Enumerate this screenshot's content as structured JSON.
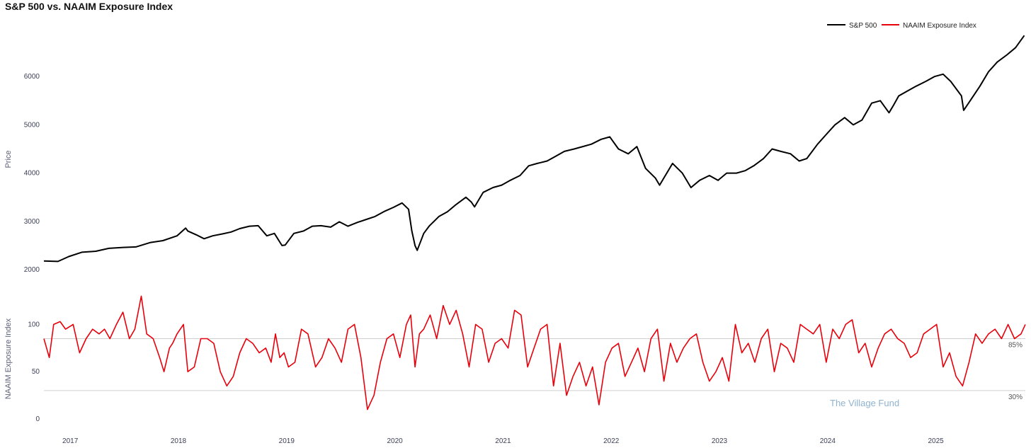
{
  "title": "S&P 500 vs. NAAIM Exposure Index",
  "watermark": "The Village Fund",
  "colors": {
    "sp500": "#000000",
    "naaim": "#e8000b",
    "refline": "#cfcfcf"
  },
  "chart_data": [
    {
      "type": "line",
      "name": "price-panel",
      "ylabel": "Price",
      "ylim": [
        1750,
        7000
      ],
      "yticks": [
        2000,
        3000,
        4000,
        5000,
        6000
      ],
      "legend": {
        "placement": "top-right",
        "entries": [
          "S&P 500",
          "NAAIM Exposure Index"
        ]
      },
      "series": [
        {
          "name": "S&P 500",
          "x": [
            2016.77,
            2016.9,
            2017.0,
            2017.12,
            2017.25,
            2017.37,
            2017.5,
            2017.62,
            2017.75,
            2017.87,
            2018.0,
            2018.08,
            2018.1,
            2018.18,
            2018.25,
            2018.33,
            2018.42,
            2018.5,
            2018.58,
            2018.67,
            2018.75,
            2018.83,
            2018.9,
            2018.97,
            2019.0,
            2019.08,
            2019.17,
            2019.25,
            2019.33,
            2019.42,
            2019.5,
            2019.58,
            2019.67,
            2019.75,
            2019.83,
            2019.92,
            2020.0,
            2020.08,
            2020.14,
            2020.17,
            2020.2,
            2020.22,
            2020.28,
            2020.33,
            2020.42,
            2020.5,
            2020.58,
            2020.67,
            2020.72,
            2020.75,
            2020.83,
            2020.92,
            2021.0,
            2021.08,
            2021.17,
            2021.25,
            2021.33,
            2021.42,
            2021.5,
            2021.58,
            2021.67,
            2021.75,
            2021.83,
            2021.92,
            2022.0,
            2022.08,
            2022.17,
            2022.25,
            2022.33,
            2022.42,
            2022.46,
            2022.58,
            2022.67,
            2022.75,
            2022.83,
            2022.92,
            2023.0,
            2023.08,
            2023.17,
            2023.25,
            2023.33,
            2023.42,
            2023.5,
            2023.58,
            2023.67,
            2023.75,
            2023.82,
            2023.92,
            2024.0,
            2024.08,
            2024.17,
            2024.25,
            2024.33,
            2024.42,
            2024.5,
            2024.58,
            2024.62,
            2024.67,
            2024.75,
            2024.83,
            2024.92,
            2025.0,
            2025.08,
            2025.15,
            2025.25,
            2025.27,
            2025.33,
            2025.42,
            2025.5,
            2025.58,
            2025.67,
            2025.75,
            2025.83
          ],
          "y": [
            2180,
            2170,
            2270,
            2360,
            2380,
            2440,
            2460,
            2470,
            2560,
            2600,
            2700,
            2860,
            2800,
            2720,
            2640,
            2700,
            2740,
            2780,
            2850,
            2900,
            2910,
            2700,
            2750,
            2500,
            2510,
            2750,
            2800,
            2900,
            2910,
            2880,
            2990,
            2900,
            2980,
            3040,
            3100,
            3210,
            3290,
            3380,
            3250,
            2800,
            2500,
            2400,
            2750,
            2900,
            3100,
            3200,
            3350,
            3500,
            3400,
            3300,
            3600,
            3700,
            3750,
            3850,
            3950,
            4150,
            4200,
            4250,
            4350,
            4450,
            4500,
            4550,
            4600,
            4700,
            4750,
            4500,
            4400,
            4550,
            4100,
            3900,
            3750,
            4200,
            4000,
            3700,
            3850,
            3950,
            3850,
            4000,
            4000,
            4050,
            4150,
            4300,
            4500,
            4450,
            4400,
            4250,
            4300,
            4600,
            4800,
            5000,
            5150,
            5000,
            5100,
            5450,
            5500,
            5250,
            5400,
            5600,
            5700,
            5800,
            5900,
            6000,
            6050,
            5900,
            5600,
            5300,
            5500,
            5800,
            6100,
            6300,
            6450,
            6600,
            6850
          ]
        }
      ]
    },
    {
      "type": "line",
      "name": "naaim-panel",
      "ylabel": "NAAIM Exposure Index",
      "ylim": [
        0,
        140
      ],
      "yticks": [
        0,
        50,
        100
      ],
      "reference_lines": [
        {
          "value": 85,
          "label": "85%"
        },
        {
          "value": 30,
          "label": "30%"
        }
      ],
      "series": [
        {
          "name": "NAAIM Exposure Index",
          "x": [
            2016.77,
            2016.82,
            2016.86,
            2016.92,
            2016.97,
            2017.04,
            2017.1,
            2017.16,
            2017.22,
            2017.28,
            2017.33,
            2017.38,
            2017.44,
            2017.5,
            2017.56,
            2017.61,
            2017.67,
            2017.72,
            2017.78,
            2017.84,
            2017.88,
            2017.93,
            2017.96,
            2018.0,
            2018.06,
            2018.1,
            2018.16,
            2018.22,
            2018.28,
            2018.34,
            2018.4,
            2018.46,
            2018.52,
            2018.58,
            2018.64,
            2018.7,
            2018.76,
            2018.82,
            2018.87,
            2018.91,
            2018.95,
            2018.99,
            2019.03,
            2019.09,
            2019.15,
            2019.21,
            2019.28,
            2019.34,
            2019.4,
            2019.46,
            2019.52,
            2019.58,
            2019.64,
            2019.7,
            2019.76,
            2019.82,
            2019.88,
            2019.94,
            2020.0,
            2020.06,
            2020.12,
            2020.16,
            2020.2,
            2020.24,
            2020.28,
            2020.34,
            2020.4,
            2020.46,
            2020.52,
            2020.58,
            2020.64,
            2020.7,
            2020.76,
            2020.82,
            2020.88,
            2020.94,
            2021.0,
            2021.06,
            2021.12,
            2021.18,
            2021.24,
            2021.3,
            2021.36,
            2021.42,
            2021.48,
            2021.54,
            2021.6,
            2021.66,
            2021.72,
            2021.78,
            2021.84,
            2021.9,
            2021.96,
            2022.02,
            2022.08,
            2022.14,
            2022.2,
            2022.26,
            2022.32,
            2022.38,
            2022.44,
            2022.5,
            2022.56,
            2022.62,
            2022.68,
            2022.74,
            2022.8,
            2022.86,
            2022.92,
            2022.98,
            2023.04,
            2023.1,
            2023.16,
            2023.22,
            2023.28,
            2023.34,
            2023.4,
            2023.46,
            2023.52,
            2023.58,
            2023.64,
            2023.7,
            2023.76,
            2023.82,
            2023.88,
            2023.94,
            2024.0,
            2024.06,
            2024.12,
            2024.18,
            2024.24,
            2024.3,
            2024.36,
            2024.42,
            2024.48,
            2024.54,
            2024.6,
            2024.66,
            2024.72,
            2024.78,
            2024.84,
            2024.9,
            2024.96,
            2025.02,
            2025.08,
            2025.14,
            2025.2,
            2025.26,
            2025.32,
            2025.38,
            2025.44,
            2025.5,
            2025.56,
            2025.62,
            2025.68,
            2025.74,
            2025.8,
            2025.84
          ],
          "y": [
            85,
            65,
            100,
            103,
            95,
            100,
            70,
            85,
            95,
            90,
            95,
            85,
            100,
            113,
            85,
            95,
            130,
            90,
            85,
            65,
            50,
            75,
            80,
            90,
            100,
            50,
            55,
            85,
            85,
            80,
            50,
            35,
            45,
            70,
            85,
            80,
            70,
            75,
            60,
            90,
            65,
            70,
            55,
            60,
            95,
            90,
            55,
            65,
            85,
            75,
            60,
            95,
            100,
            65,
            10,
            25,
            60,
            85,
            90,
            65,
            100,
            110,
            55,
            90,
            95,
            110,
            85,
            120,
            100,
            115,
            90,
            55,
            100,
            95,
            60,
            80,
            85,
            75,
            115,
            110,
            55,
            75,
            95,
            100,
            35,
            80,
            25,
            45,
            60,
            35,
            55,
            15,
            60,
            75,
            80,
            45,
            60,
            75,
            50,
            85,
            95,
            40,
            80,
            60,
            75,
            85,
            90,
            60,
            40,
            50,
            65,
            40,
            100,
            70,
            80,
            60,
            85,
            95,
            50,
            80,
            75,
            60,
            100,
            95,
            90,
            100,
            60,
            95,
            85,
            100,
            105,
            70,
            80,
            55,
            75,
            90,
            95,
            85,
            80,
            65,
            70,
            90,
            95,
            100,
            55,
            70,
            45,
            35,
            60,
            90,
            80,
            90,
            95,
            85,
            100,
            85,
            90,
            100
          ]
        }
      ],
      "xticks": [
        "2017",
        "2018",
        "2019",
        "2020",
        "2021",
        "2022",
        "2023",
        "2024",
        "2025"
      ]
    }
  ]
}
